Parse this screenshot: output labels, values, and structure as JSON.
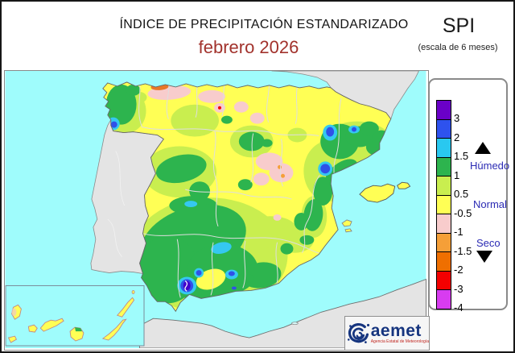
{
  "header": {
    "title": "ÍNDICE DE PRECIPITACIÓN ESTANDARIZADO",
    "month": "febrero  2026",
    "index_abbr": "SPI",
    "scale_note": "(escala de 6 meses)"
  },
  "legend": {
    "ticks": [
      "3",
      "2",
      "1.5",
      "1",
      "0.5",
      "-0.5",
      "-1",
      "-1.5",
      "-2",
      "-3",
      "-4"
    ],
    "colors": [
      "#6a00c8",
      "#2e52ee",
      "#29c8f0",
      "#2db44e",
      "#c9ee4f",
      "#ffff55",
      "#f8cccc",
      "#f59f38",
      "#ef6f00",
      "#f40000",
      "#d83cf0"
    ],
    "humid_label": "Húmedo",
    "normal_label": "Normal",
    "dry_label": "Seco"
  },
  "map": {
    "sea_color": "#9ffcfc",
    "nodata_land_color": "#e4e4e4",
    "spain_base_color": "#ffff55"
  },
  "logo": {
    "name": "aemet",
    "subtitle": "Agencia Estatal de Meteorología"
  }
}
